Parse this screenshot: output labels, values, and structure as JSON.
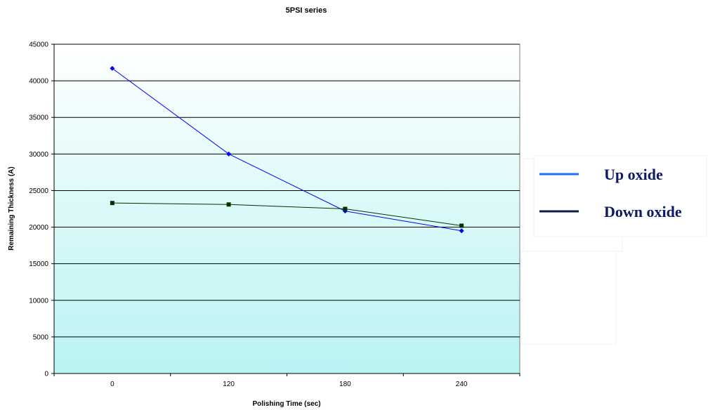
{
  "chart_data": {
    "type": "line",
    "title": "5PSI series",
    "xlabel": "Polishing Time (sec)",
    "ylabel": "Remaining Thickness (A)",
    "categories": [
      "0",
      "120",
      "180",
      "240"
    ],
    "ylim": [
      0,
      45000
    ],
    "yticks": [
      0,
      5000,
      10000,
      15000,
      20000,
      25000,
      30000,
      35000,
      40000,
      45000
    ],
    "grid": true,
    "legend_position": "right",
    "series": [
      {
        "name": "Up oxide",
        "values": [
          41700,
          30000,
          22200,
          19500
        ],
        "color": "#0000ff",
        "marker": "diamond"
      },
      {
        "name": "Down oxide",
        "values": [
          23300,
          23100,
          22500,
          20200
        ],
        "color": "#003300",
        "marker": "square"
      }
    ],
    "legend": [
      {
        "label": "Up oxide",
        "color": "#1f6fff"
      },
      {
        "label": "Down oxide",
        "color": "#0a1a4a"
      }
    ],
    "colors": {
      "plot_bg_top": "#ffffff",
      "plot_bg_bottom": "#b9f3f3",
      "gridline": "#000000"
    }
  }
}
